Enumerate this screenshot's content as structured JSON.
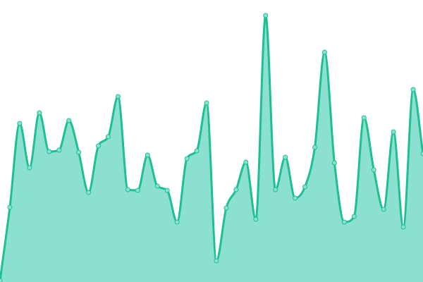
{
  "chart_data": {
    "type": "area",
    "title": "",
    "xlabel": "",
    "ylabel": "",
    "x": [
      0,
      1,
      2,
      3,
      4,
      5,
      6,
      7,
      8,
      9,
      10,
      11,
      12,
      13,
      14,
      15,
      16,
      17,
      18,
      19,
      20,
      21,
      22,
      23,
      24,
      25,
      26,
      27,
      28,
      29,
      30,
      31,
      32,
      33,
      34,
      35,
      36,
      37,
      38,
      39,
      40,
      41,
      42,
      43
    ],
    "values": [
      2,
      106,
      225,
      162,
      240,
      185,
      187,
      229,
      184,
      127,
      193,
      206,
      263,
      131,
      130,
      180,
      136,
      130,
      85,
      175,
      186,
      254,
      30,
      105,
      131,
      170,
      89,
      378,
      131,
      177,
      119,
      135,
      191,
      326,
      169,
      85,
      93,
      233,
      159,
      103,
      213,
      78,
      273,
      182
    ],
    "ylim": [
      0,
      400
    ],
    "grid": false,
    "axes": false,
    "curve": "smooth",
    "colors": {
      "line": "#1fbf95",
      "fill": "#8ce0cf",
      "marker_fill": "#8ce0cf",
      "marker_stroke": "#1fbf95"
    }
  }
}
